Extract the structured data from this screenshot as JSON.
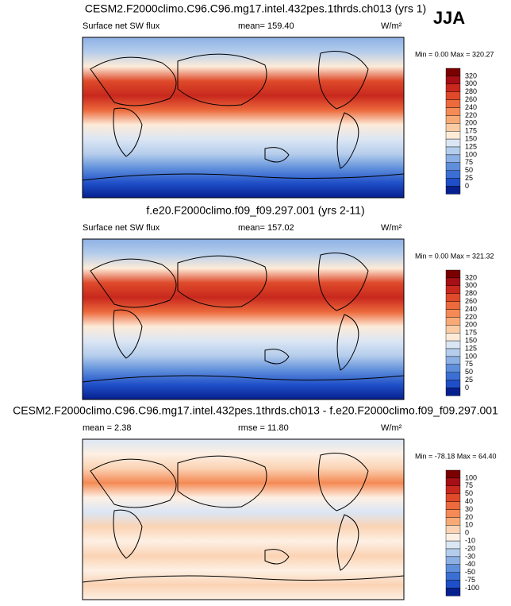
{
  "season": "JJA",
  "panels": [
    {
      "title": "CESM2.F2000climo.C96.C96.mg17.intel.432pes.1thrds.ch013 (yrs 1)",
      "labels": [
        "Surface net SW flux",
        "mean= 159.40"
      ],
      "units": "W/m²",
      "range": "Min =  0.00 Max = 320.27",
      "levels": [
        "320",
        "300",
        "280",
        "260",
        "240",
        "220",
        "200",
        "175",
        "150",
        "125",
        "100",
        "75",
        "50",
        "25",
        "0"
      ],
      "colors": [
        "#7a0000",
        "#a50f15",
        "#c8281d",
        "#de4a2a",
        "#ec6a3c",
        "#f48a55",
        "#f8aa76",
        "#fbcba3",
        "#fdebd8",
        "#dbe6f4",
        "#b5cdec",
        "#8db0e4",
        "#5f8fdb",
        "#3b6fd3",
        "#1f4fc8",
        "#06208f"
      ]
    },
    {
      "title": "f.e20.F2000climo.f09_f09.297.001 (yrs 2-11)",
      "labels": [
        "Surface net SW flux",
        "mean= 157.02"
      ],
      "units": "W/m²",
      "range": "Min =  0.00 Max = 321.32",
      "levels": [
        "320",
        "300",
        "280",
        "260",
        "240",
        "220",
        "200",
        "175",
        "150",
        "125",
        "100",
        "75",
        "50",
        "25",
        "0"
      ],
      "colors": [
        "#7a0000",
        "#a50f15",
        "#c8281d",
        "#de4a2a",
        "#ec6a3c",
        "#f48a55",
        "#f8aa76",
        "#fbcba3",
        "#fdebd8",
        "#dbe6f4",
        "#b5cdec",
        "#8db0e4",
        "#5f8fdb",
        "#3b6fd3",
        "#1f4fc8",
        "#06208f"
      ]
    },
    {
      "title": "CESM2.F2000climo.C96.C96.mg17.intel.432pes.1thrds.ch013 - f.e20.F2000climo.f09_f09.297.001",
      "labels": [
        "mean =  2.38",
        "rmse = 11.80"
      ],
      "units": "W/m²",
      "range": "Min = -78.18 Max =  64.40",
      "levels": [
        "100",
        "75",
        "50",
        "40",
        "30",
        "20",
        "10",
        "0",
        "-10",
        "-20",
        "-30",
        "-40",
        "-50",
        "-75",
        "-100"
      ],
      "colors": [
        "#7a0000",
        "#a50f15",
        "#c8281d",
        "#de4a2a",
        "#ec6a3c",
        "#f48a55",
        "#f8aa76",
        "#fbd3b4",
        "#fdf0e4",
        "#dbe6f4",
        "#b5cdec",
        "#8db0e4",
        "#5f8fdb",
        "#3b6fd3",
        "#1f4fc8",
        "#06208f"
      ]
    }
  ]
}
